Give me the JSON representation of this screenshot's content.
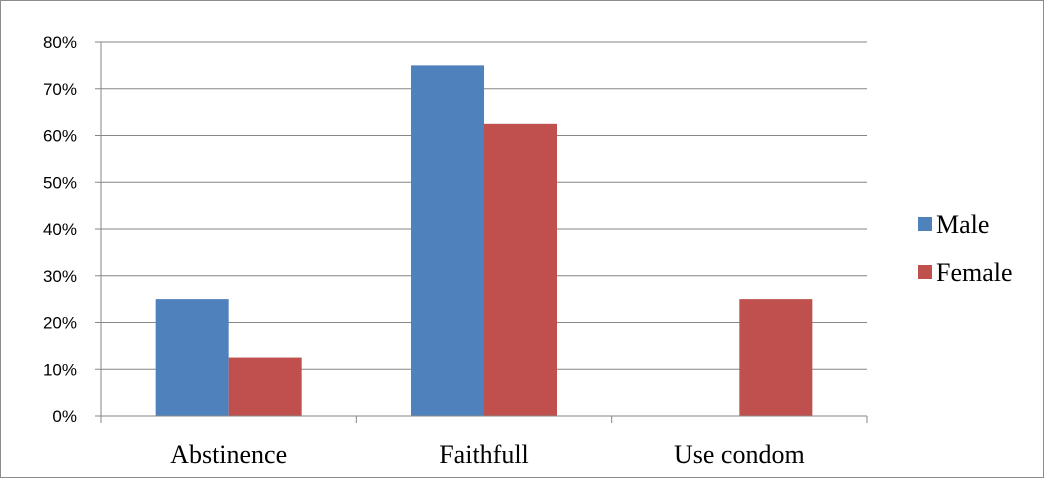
{
  "chart_data": {
    "type": "bar",
    "title": "",
    "xlabel": "",
    "ylabel": "",
    "categories": [
      "Abstinence",
      "Faithfull",
      "Use condom"
    ],
    "series": [
      {
        "name": "Male",
        "color": "#4f81bd",
        "values": [
          25,
          75,
          0
        ]
      },
      {
        "name": "Female",
        "color": "#c0504d",
        "values": [
          12.5,
          62.5,
          25
        ]
      }
    ],
    "ylim": [
      0,
      80
    ],
    "yticks": [
      0,
      10,
      20,
      30,
      40,
      50,
      60,
      70,
      80
    ],
    "ytick_labels": [
      "0%",
      "10%",
      "20%",
      "30%",
      "40%",
      "50%",
      "60%",
      "70%",
      "80%"
    ],
    "grid": true,
    "legend_position": "right"
  }
}
